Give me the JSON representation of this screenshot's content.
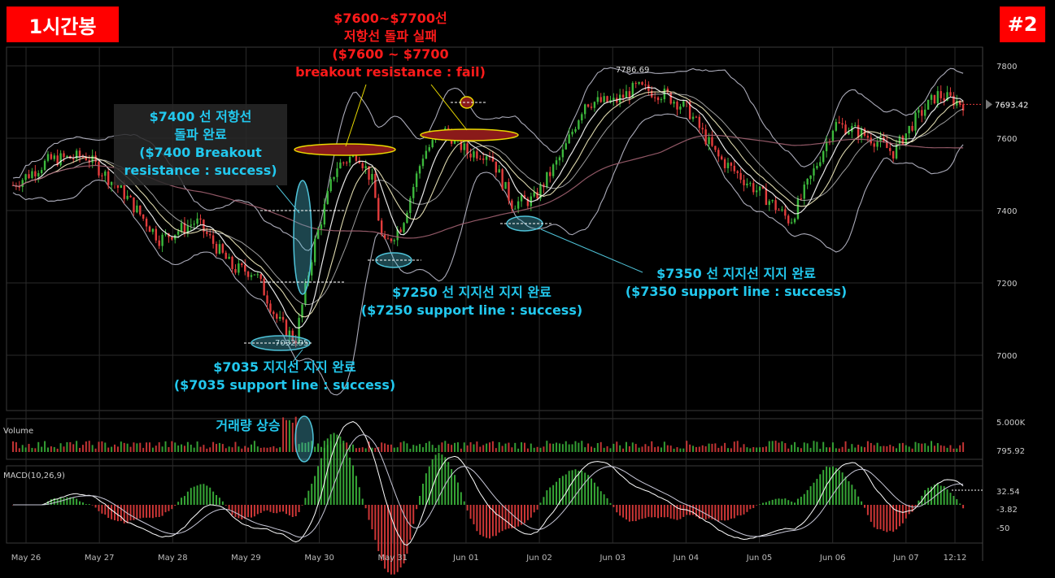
{
  "labels": {
    "timeframe_tag": "1시간봉",
    "chart_number_tag": "#2",
    "volume_label": "Volume",
    "macd_label": "MACD(10,26,9)"
  },
  "annotations": {
    "resistance_fail": [
      "$7600~$7700선",
      "저항선 돌파 실패",
      "($7600 ~ $7700",
      "breakout resistance : fail)"
    ],
    "resistance_success": [
      "$7400 선 저항선",
      "돌파 완료",
      "($7400 Breakout",
      "resistance : success)"
    ],
    "support_7250": [
      "$7250 선 지지선 지지 완료",
      "($7250 support line : success)"
    ],
    "support_7350": [
      "$7350 선 지지선 지지 완료",
      "($7350 support line : success)"
    ],
    "support_7035": [
      "$7035  지지선 지지 완료",
      "($7035 support line : success)"
    ],
    "volume_note": "거래량 상승"
  },
  "chart_data": {
    "type": "candlestick",
    "price_axis": {
      "ticks": [
        7000,
        7200,
        7400,
        7600,
        7800
      ],
      "ylim": [
        6920,
        7870
      ]
    },
    "x_ticks": [
      "May 26",
      "May 27",
      "May 28",
      "May 29",
      "May 30",
      "May 31",
      "Jun 01",
      "Jun 02",
      "Jun 03",
      "Jun 04",
      "Jun 05",
      "Jun 06",
      "Jun 07",
      "12:12"
    ],
    "high_label": "7786.69",
    "low_label": "7032.95",
    "last_price": "7693.42",
    "price_path": [
      {
        "t": 0,
        "p": 7470
      },
      {
        "t": 0.5,
        "p": 7540
      },
      {
        "t": 1.0,
        "p": 7550
      },
      {
        "t": 1.5,
        "p": 7450
      },
      {
        "t": 2.0,
        "p": 7320
      },
      {
        "t": 2.5,
        "p": 7370
      },
      {
        "t": 3.0,
        "p": 7240
      },
      {
        "t": 3.3,
        "p": 7230
      },
      {
        "t": 3.6,
        "p": 7100
      },
      {
        "t": 3.85,
        "p": 7040
      },
      {
        "t": 4.1,
        "p": 7300
      },
      {
        "t": 4.4,
        "p": 7520
      },
      {
        "t": 4.7,
        "p": 7560
      },
      {
        "t": 4.9,
        "p": 7480
      },
      {
        "t": 5.05,
        "p": 7300
      },
      {
        "t": 5.3,
        "p": 7360
      },
      {
        "t": 5.6,
        "p": 7560
      },
      {
        "t": 5.9,
        "p": 7620
      },
      {
        "t": 6.2,
        "p": 7560
      },
      {
        "t": 6.5,
        "p": 7560
      },
      {
        "t": 6.8,
        "p": 7420
      },
      {
        "t": 7.1,
        "p": 7430
      },
      {
        "t": 7.5,
        "p": 7560
      },
      {
        "t": 7.8,
        "p": 7700
      },
      {
        "t": 8.2,
        "p": 7700
      },
      {
        "t": 8.5,
        "p": 7740
      },
      {
        "t": 8.9,
        "p": 7720
      },
      {
        "t": 9.2,
        "p": 7680
      },
      {
        "t": 9.6,
        "p": 7550
      },
      {
        "t": 10.0,
        "p": 7480
      },
      {
        "t": 10.3,
        "p": 7430
      },
      {
        "t": 10.6,
        "p": 7370
      },
      {
        "t": 10.9,
        "p": 7500
      },
      {
        "t": 11.2,
        "p": 7640
      },
      {
        "t": 11.5,
        "p": 7620
      },
      {
        "t": 11.8,
        "p": 7590
      },
      {
        "t": 12.0,
        "p": 7560
      },
      {
        "t": 12.3,
        "p": 7650
      },
      {
        "t": 12.6,
        "p": 7720
      },
      {
        "t": 13.0,
        "p": 7693
      }
    ],
    "volume": {
      "axis_ticks": [
        "5.000K",
        "795.92"
      ],
      "spike_near": "May 30"
    },
    "macd": {
      "axis_ticks": [
        "32.54",
        "-3.82",
        "-50"
      ]
    },
    "colors": {
      "up": "#3cb83c",
      "down": "#e33c3c",
      "band": "#c8c8d8",
      "ma_long": "#a06070",
      "ellipse_fill": "#8a1a1a",
      "ellipse_stroke": "#e8d800",
      "support_ellipse": "#4fc3d9"
    }
  }
}
